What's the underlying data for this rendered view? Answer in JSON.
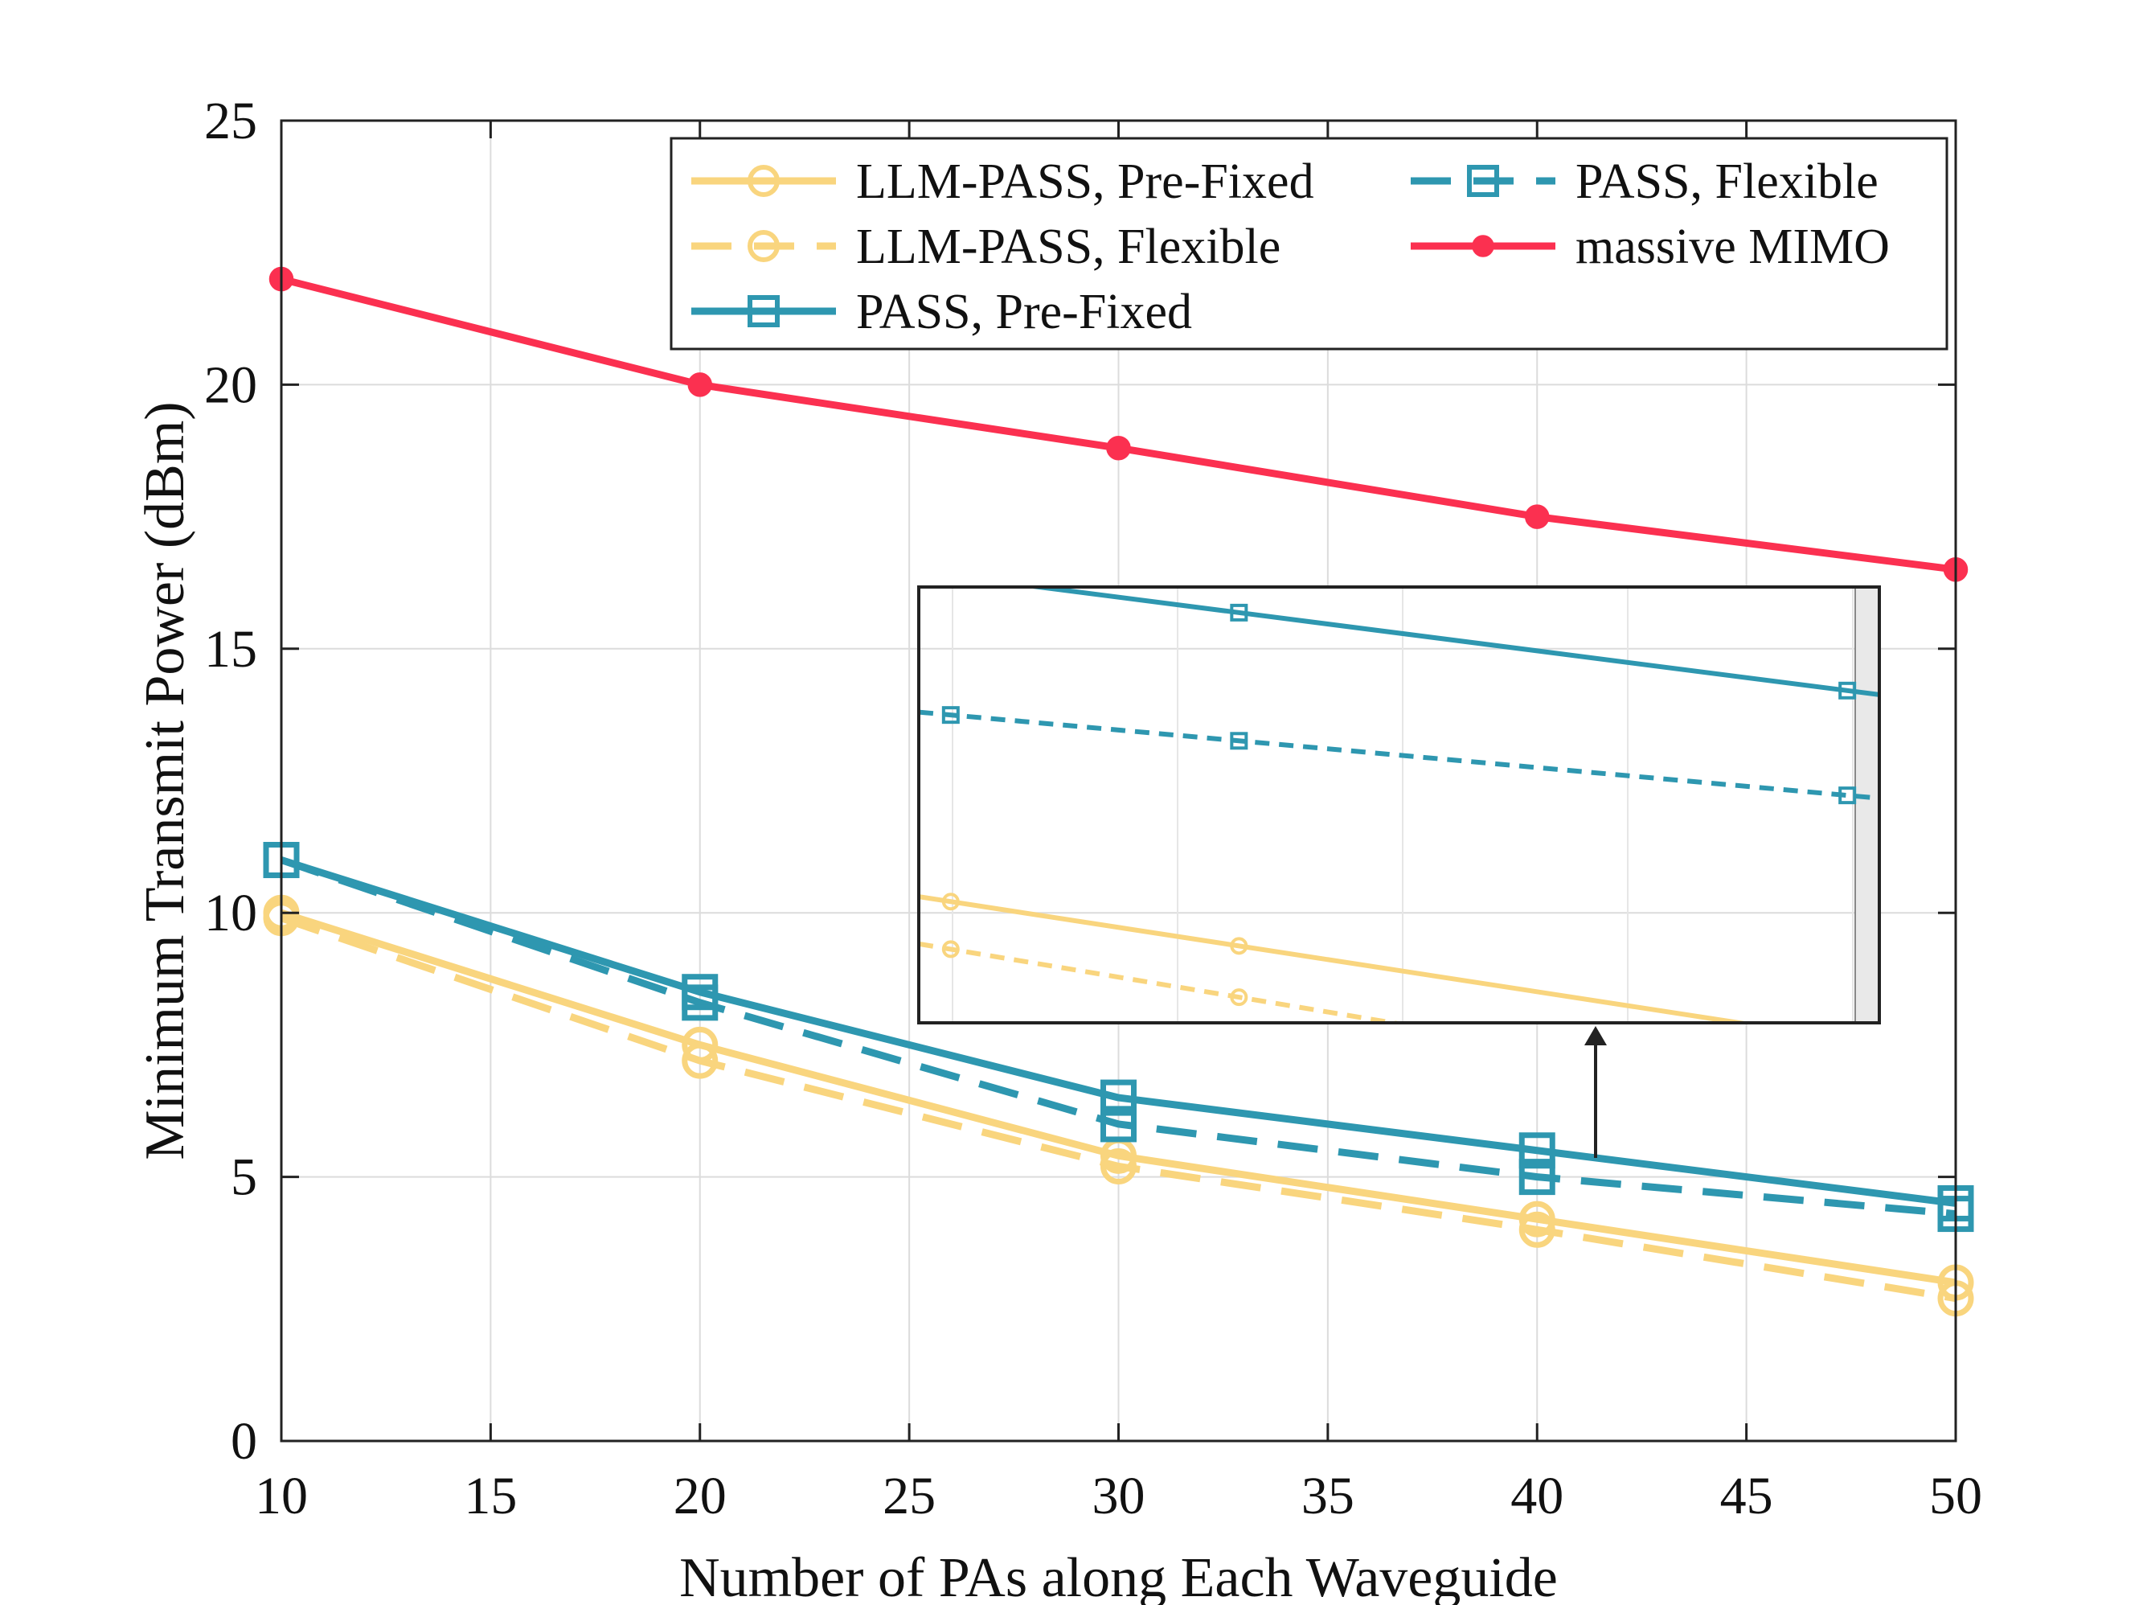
{
  "chart_data": {
    "type": "line",
    "title": "",
    "xlabel": "Number of PAs along Each Waveguide",
    "ylabel": "Minimum Transmit Power (dBm)",
    "xlim": [
      10,
      50
    ],
    "ylim": [
      0,
      25
    ],
    "xticks": [
      "10",
      "15",
      "20",
      "25",
      "30",
      "35",
      "40",
      "45",
      "50"
    ],
    "yticks": [
      "0",
      "5",
      "10",
      "15",
      "20",
      "25"
    ],
    "grid": true,
    "legend_position": "top-right",
    "x": [
      10,
      20,
      30,
      40,
      50
    ],
    "series": [
      {
        "name": "LLM-PASS, Pre-Fixed",
        "values": [
          10.0,
          7.5,
          5.4,
          4.2,
          3.0
        ],
        "color": "#f9d57e",
        "dash": "solid",
        "marker": "circle"
      },
      {
        "name": "LLM-PASS, Flexible",
        "values": [
          9.9,
          7.2,
          5.2,
          4.0,
          2.7
        ],
        "color": "#f9d57e",
        "dash": "dashed",
        "marker": "circle"
      },
      {
        "name": "PASS, Pre-Fixed",
        "values": [
          11.0,
          8.5,
          6.5,
          5.5,
          4.5
        ],
        "color": "#2e97b0",
        "dash": "solid",
        "marker": "square"
      },
      {
        "name": "PASS, Flexible",
        "values": [
          11.0,
          8.3,
          6.0,
          5.0,
          4.3
        ],
        "color": "#2e97b0",
        "dash": "dashed",
        "marker": "square"
      },
      {
        "name": "massive MIMO",
        "values": [
          22.0,
          20.0,
          18.8,
          17.5,
          16.5
        ],
        "color": "#fb3050",
        "dash": "solid",
        "marker": "dot"
      }
    ],
    "inset": {
      "xlim": [
        39.5,
        41
      ],
      "ylim": [
        3.9,
        5.6
      ]
    }
  }
}
